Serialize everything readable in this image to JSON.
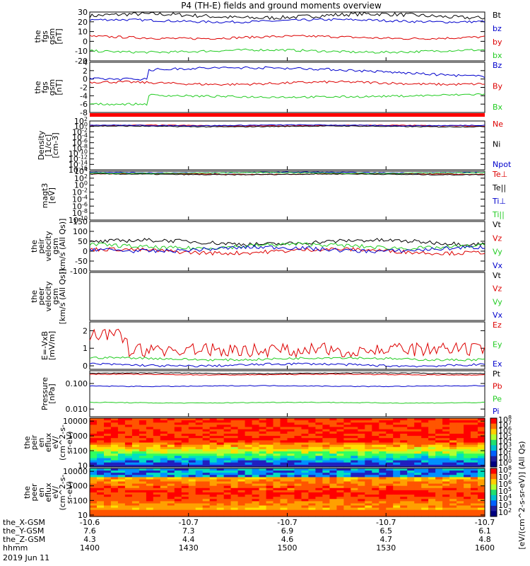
{
  "chart_data": {
    "type": "line",
    "title": "P4 (TH-E) fields and ground moments overview",
    "date": "2019 Jun 11",
    "colors": {
      "black": "#000000",
      "red": "#dd0000",
      "green": "#22cc22",
      "blue": "#0000cc"
    },
    "x": {
      "labels": [
        "1400",
        "1430",
        "1500",
        "1530",
        "1600"
      ],
      "minutes": [
        0,
        30,
        60,
        90,
        120
      ]
    },
    "footer": {
      "row_labels": [
        "the_X-GSM",
        "the_Y-GSM",
        "the_Z-GSM",
        "hhmm"
      ],
      "rows": [
        [
          "-10.6",
          "-10.7",
          "-10.7",
          "-10.7",
          "-10.7"
        ],
        [
          "7.6",
          "7.3",
          "6.9",
          "6.5",
          "6.1"
        ],
        [
          "4.3",
          "4.4",
          "4.6",
          "4.7",
          "4.8"
        ],
        [
          "1400",
          "1430",
          "1500",
          "1530",
          "1600"
        ]
      ]
    },
    "panels": [
      {
        "id": "fgs",
        "ylabel": [
          "the",
          "fgs",
          "gsm",
          "[nT]"
        ],
        "scale": "linear",
        "ylim": [
          -20,
          30
        ],
        "yticks": [
          "30",
          "20",
          "10",
          "0",
          "-10",
          "-20"
        ],
        "ytick_values": [
          30,
          20,
          10,
          0,
          -10,
          -20
        ],
        "legend": [
          "Bt",
          "bz",
          "by",
          "bx"
        ],
        "series": [
          {
            "name": "Bt",
            "color": "black",
            "level": 26
          },
          {
            "name": "bz",
            "color": "blue",
            "level": 21
          },
          {
            "name": "by",
            "color": "red",
            "level": 4
          },
          {
            "name": "bx",
            "color": "green",
            "level": -10
          }
        ]
      },
      {
        "id": "fgs_dsl",
        "ylabel": [
          "the",
          "fgs",
          "gsm",
          "[nT]"
        ],
        "scale": "linear",
        "ylim": [
          -8,
          4
        ],
        "yticks": [
          "4",
          "2",
          "0",
          "-2",
          "-4",
          "-6",
          "-8"
        ],
        "ytick_values": [
          4,
          2,
          0,
          -2,
          -4,
          -6,
          -8
        ],
        "legend": [
          "Bz",
          "By",
          "Bx"
        ],
        "series": [
          {
            "name": "Bz",
            "color": "blue",
            "level": 1.5
          },
          {
            "name": "By",
            "color": "red",
            "level": -1
          },
          {
            "name": "Bx",
            "color": "green",
            "level": -4
          }
        ]
      },
      {
        "id": "density",
        "ylabel": [
          "Density",
          "[1/cc]",
          "[cm-3]"
        ],
        "scale": "log",
        "ylim": [
          -16,
          2
        ],
        "yticks": [
          "10^2",
          "10^0",
          "10^-2",
          "10^-4",
          "10^-6",
          "10^-8",
          "10^-10",
          "10^-12",
          "10^-14",
          "10^-16"
        ],
        "ytick_values": [
          2,
          0,
          -2,
          -4,
          -6,
          -8,
          -10,
          -12,
          -14,
          -16
        ],
        "legend": [
          "Ne",
          "Ni",
          "Npot"
        ],
        "series": [
          {
            "name": "Ne",
            "color": "red",
            "level": 0.3
          },
          {
            "name": "Ni",
            "color": "black",
            "level": 0
          },
          {
            "name": "Npot",
            "color": "blue",
            "level": 0.4
          }
        ]
      },
      {
        "id": "temp",
        "ylabel": [
          "magt3",
          "[eV]"
        ],
        "scale": "log",
        "ylim": [
          -10,
          4
        ],
        "yticks": [
          "10^4",
          "10^2",
          "10^0",
          "10^-2",
          "10^-4",
          "10^-6",
          "10^-8",
          "10^-10"
        ],
        "ytick_values": [
          4,
          2,
          0,
          -2,
          -4,
          -6,
          -8,
          -10
        ],
        "legend": [
          "Te⊥",
          "Te||",
          "Ti⊥",
          "Ti||"
        ],
        "series": [
          {
            "name": "Te⊥",
            "color": "red",
            "level": 3.2
          },
          {
            "name": "Te||",
            "color": "black",
            "level": 3.1
          },
          {
            "name": "Ti⊥",
            "color": "blue",
            "level": 3.6
          },
          {
            "name": "Ti||",
            "color": "green",
            "level": 3.5
          }
        ]
      },
      {
        "id": "peir_vel",
        "ylabel": [
          "the",
          "peir",
          "velocity",
          "gsm",
          "[km/s (All Qs)]"
        ],
        "scale": "linear",
        "ylim": [
          -100,
          150
        ],
        "yticks": [
          "150",
          "100",
          "50",
          "0",
          "-50",
          "-100"
        ],
        "ytick_values": [
          150,
          100,
          50,
          0,
          -50,
          -100
        ],
        "legend": [
          "Vt",
          "Vz",
          "Vy",
          "Vx"
        ],
        "series": [
          {
            "name": "Vt",
            "color": "black",
            "level": 45
          },
          {
            "name": "Vz",
            "color": "red",
            "level": 0
          },
          {
            "name": "Vy",
            "color": "green",
            "level": 25
          },
          {
            "name": "Vx",
            "color": "blue",
            "level": 10
          }
        ]
      },
      {
        "id": "peer_vel",
        "ylabel": [
          "the",
          "peer",
          "velocity",
          "gsm",
          "[km/s (All Qs)]"
        ],
        "scale": "linear",
        "ylim": [
          -100,
          150
        ],
        "yticks": [],
        "ytick_values": [],
        "legend": [
          "Vt",
          "Vz",
          "Vy",
          "Vx"
        ],
        "series": []
      },
      {
        "id": "efield",
        "ylabel": [
          "E=-VxB",
          "[mV/m]"
        ],
        "scale": "linear",
        "ylim": [
          -0.2,
          2.5
        ],
        "yticks": [
          "2",
          "1",
          "0"
        ],
        "ytick_values": [
          2,
          1,
          0
        ],
        "legend": [
          "Ez",
          "Ey",
          "Ex"
        ],
        "series": [
          {
            "name": "Ez",
            "color": "red",
            "level": 0.9
          },
          {
            "name": "Ey",
            "color": "green",
            "level": 0.4
          },
          {
            "name": "Ex",
            "color": "blue",
            "level": 0.05
          }
        ]
      },
      {
        "id": "pressure",
        "ylabel": [
          "Pressure",
          "[nPa]"
        ],
        "scale": "log",
        "ylim": [
          -2.3,
          -0.5
        ],
        "yticks": [
          "0.100",
          "0.010"
        ],
        "ytick_values": [
          -1,
          -2
        ],
        "legend": [
          "Pt",
          "Pb",
          "Pe",
          "Pi"
        ],
        "series": [
          {
            "name": "Pt",
            "color": "black",
            "level": -0.6
          },
          {
            "name": "Pb",
            "color": "red",
            "level": -0.65
          },
          {
            "name": "Pe",
            "color": "green",
            "level": -1.75
          },
          {
            "name": "Pi",
            "color": "blue",
            "level": -1.1
          }
        ]
      },
      {
        "id": "peir_spec",
        "type": "heatmap",
        "ylabel": [
          "the",
          "peir",
          "en",
          "eflux",
          "eV/",
          "(cm^2-s-",
          "sr-eV)"
        ],
        "scale": "log",
        "ylim": [
          0.9,
          4.2
        ],
        "yticks": [
          "10000",
          "1000",
          "100",
          "10"
        ],
        "ytick_values": [
          4,
          3,
          2,
          1
        ]
      },
      {
        "id": "peer_spec",
        "type": "heatmap",
        "ylabel": [
          "the",
          "peer",
          "en",
          "eflux",
          "eV/",
          "(cm^2-s-",
          "sr-eV)"
        ],
        "scale": "log",
        "ylim": [
          0.9,
          4.2
        ],
        "yticks": [
          "10000",
          "1000",
          "100",
          "10"
        ],
        "ytick_values": [
          4,
          3,
          2,
          1
        ]
      }
    ],
    "colorbar": {
      "label": "[eV/(cm^2-s-sr-eV)] (All Qs)",
      "upper_ticks": [
        "10^8",
        "10^7",
        "10^6",
        "10^5",
        "10^4",
        "10^3",
        "10^2",
        "10^1",
        "10^0"
      ],
      "lower_ticks": [
        "10^8",
        "10^7",
        "10^6",
        "10^5",
        "10^4",
        "10^3",
        "10^2"
      ]
    }
  }
}
